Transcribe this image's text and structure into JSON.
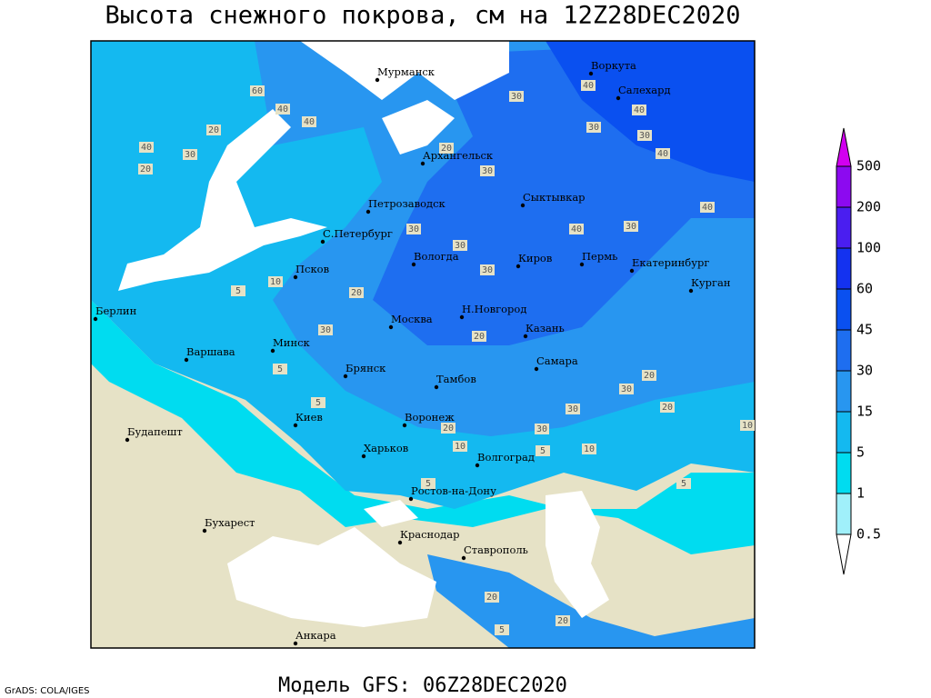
{
  "header": {
    "title": "Высота снежного покрова, см на 12Z28DEC2020"
  },
  "footer": {
    "model": "Модель GFS: 06Z28DEC2020",
    "credit": "GrADS: COLA/IGES"
  },
  "legend": {
    "levels": [
      0.5,
      1,
      5,
      15,
      30,
      45,
      60,
      100,
      200,
      500
    ],
    "colors": [
      "#ffffff",
      "#a0f0fa",
      "#00dcf0",
      "#14b9f0",
      "#2896f0",
      "#1e6ef0",
      "#0a50f0",
      "#1432f0",
      "#4a1ef0",
      "#8c0af0",
      "#d200f0"
    ]
  },
  "cities": [
    "Мурманск",
    "Воркута",
    "Салехард",
    "Архангельск",
    "Петрозаводск",
    "Сыктывкар",
    "С.Петербург",
    "Вологда",
    "Киров",
    "Пермь",
    "Екатеринбург",
    "Курган",
    "Псков",
    "Берлин",
    "Н.Новгород",
    "Москва",
    "Казань",
    "Варшава",
    "Минск",
    "Самара",
    "Брянск",
    "Тамбов",
    "Киев",
    "Воронеж",
    "Будапешт",
    "Харьков",
    "Волгоград",
    "Ростов-на-Дону",
    "Бухарест",
    "Краснодар",
    "Ставрополь",
    "Анкара"
  ],
  "contour_labels": [
    60,
    30,
    40,
    40,
    30,
    30,
    40,
    20,
    30,
    40,
    40,
    20,
    40,
    30,
    20,
    40,
    30,
    40,
    30,
    30,
    30,
    10,
    5,
    20,
    30,
    20,
    5,
    5,
    20,
    30,
    30,
    20,
    10,
    20,
    10,
    30,
    5,
    10,
    5,
    5,
    20,
    20,
    5
  ]
}
